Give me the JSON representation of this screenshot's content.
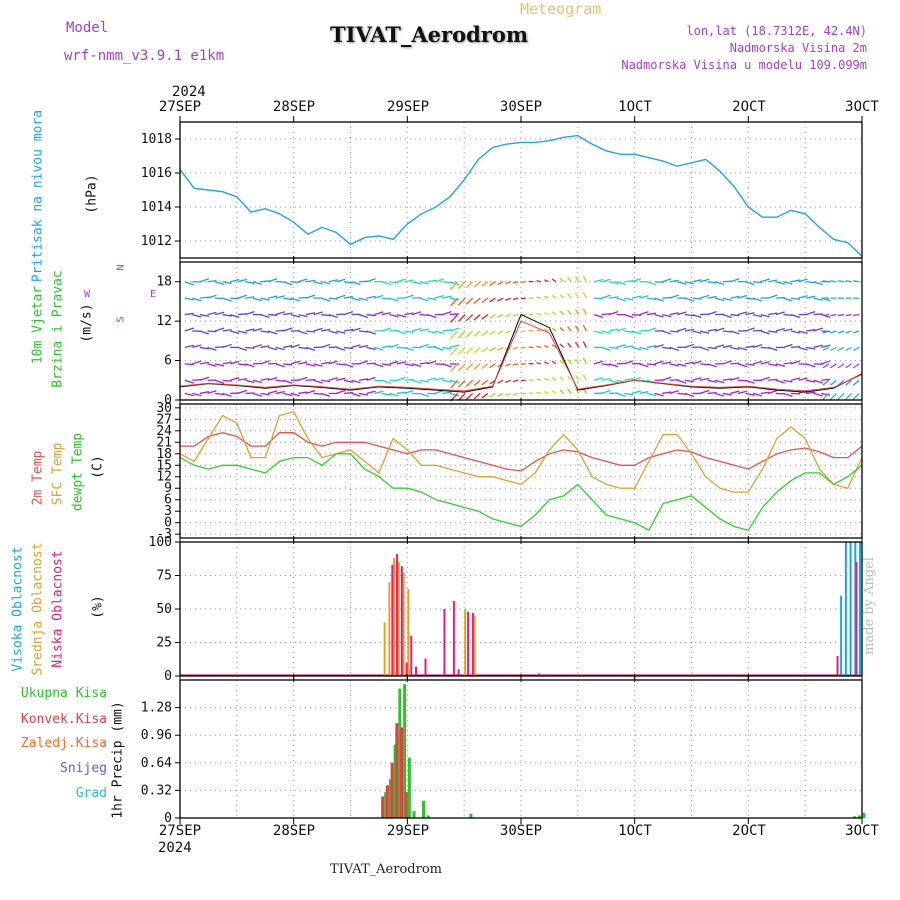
{
  "header": {
    "title": "TIVAT_Aerodrom",
    "meteogram": "Meteogram",
    "model_label": "Model",
    "model_value": "wrf-nmm_v3.9.1 e1km",
    "lonlat": "lon,lat (18.7312E, 42.4N)",
    "elevation": "Nadmorska Visina 2m",
    "model_elevation": "Nadmorska Visina u modelu 109.099m",
    "year": "2024",
    "footer": "TIVAT_Aerodrom",
    "credit": "made by Angel"
  },
  "dates": [
    "27SEP",
    "28SEP",
    "29SEP",
    "30SEP",
    "1OCT",
    "2OCT",
    "3OCT"
  ],
  "colors": {
    "pressure": "#1ea6e6",
    "temp2m": "#e85050",
    "sfc": "#e0a030",
    "dewpt": "#30d030",
    "high": "#20a0e0",
    "mid": "#e0a030",
    "low": "#e0207a",
    "total": "#30c030",
    "conv": "#e04040",
    "gridscale": "#f07020",
    "snow": "#6060e0",
    "hail": "#30c0c0"
  },
  "panel_labels": {
    "pressure": [
      "Pritisak na nivou mora",
      "(hPa)"
    ],
    "wind": [
      "10m Vjetar",
      "Brzina i Pravac",
      "(m/s)"
    ],
    "temp": [
      "2m Temp",
      "SFC Temp",
      "dewpt Temp",
      "(C)"
    ],
    "cloud": [
      "Visoka Oblacnost",
      "Srednja Oblacnost",
      "Niska Oblacnost",
      "(%)"
    ],
    "precip": [
      "Ukupna Kisa",
      "Konvek.Kisa",
      "Zaledj.Kisa",
      "Snijeg",
      "Grad",
      "1hr Precip (mm)"
    ]
  },
  "compass": {
    "n": "N",
    "w": "W",
    "e": "E",
    "s": "S"
  },
  "chart_data": [
    {
      "type": "line",
      "title": "Pritisak na nivou mora",
      "ylabel": "(hPa)",
      "ylim": [
        1011,
        1019
      ],
      "yticks": [
        "1012",
        "1014",
        "1016",
        "1018"
      ],
      "x_hours": [
        0,
        3,
        6,
        9,
        12,
        15,
        18,
        21,
        24,
        27,
        30,
        33,
        36,
        39,
        42,
        45,
        48,
        51,
        54,
        57,
        60,
        63,
        66,
        69,
        72,
        75,
        78,
        81,
        84,
        87,
        90,
        93,
        96,
        99,
        102,
        105,
        108,
        111,
        114,
        117,
        120,
        123,
        126,
        129,
        132,
        135,
        138,
        141,
        144
      ],
      "series": [
        {
          "name": "Pritisak na nivou mora",
          "values": [
            1016.2,
            1015.1,
            1015.0,
            1014.9,
            1014.6,
            1013.7,
            1013.9,
            1013.6,
            1013.1,
            1012.4,
            1012.8,
            1012.5,
            1011.8,
            1012.2,
            1012.3,
            1012.1,
            1013.0,
            1013.6,
            1014.0,
            1014.6,
            1015.6,
            1016.8,
            1017.5,
            1017.7,
            1017.8,
            1017.8,
            1017.9,
            1018.1,
            1018.2,
            1017.7,
            1017.3,
            1017.1,
            1017.1,
            1016.9,
            1016.7,
            1016.4,
            1016.6,
            1016.8,
            1016.1,
            1015.2,
            1014.0,
            1013.4,
            1013.4,
            1013.8,
            1013.6,
            1012.8,
            1012.1,
            1011.9,
            1011.1
          ]
        }
      ]
    },
    {
      "type": "line",
      "title": "10m Vjetar Brzina i Pravac",
      "ylabel": "(m/s)",
      "ylim": [
        0,
        21
      ],
      "yticks": [
        "0",
        "6",
        "12",
        "18"
      ],
      "x_hours": [
        0,
        6,
        12,
        18,
        24,
        30,
        36,
        42,
        48,
        54,
        60,
        66,
        72,
        78,
        84,
        90,
        96,
        102,
        108,
        114,
        120,
        126,
        132,
        138,
        144
      ],
      "series": [
        {
          "name": "wind speed",
          "values": [
            2.0,
            2.5,
            2.2,
            1.8,
            2.2,
            1.9,
            1.5,
            2.0,
            1.8,
            1.5,
            1.2,
            2.0,
            13.0,
            11.0,
            1.5,
            2.2,
            3.0,
            2.5,
            2.0,
            1.8,
            2.0,
            1.5,
            1.2,
            1.8,
            4.0
          ]
        }
      ]
    },
    {
      "type": "line",
      "title": "2m Temp / SFC Temp / dewpt Temp",
      "ylabel": "(C)",
      "ylim": [
        -4,
        31
      ],
      "yticks": [
        "-3",
        "0",
        "3",
        "6",
        "9",
        "12",
        "15",
        "18",
        "21",
        "24",
        "27",
        "30"
      ],
      "x_hours": [
        0,
        3,
        6,
        9,
        12,
        15,
        18,
        21,
        24,
        27,
        30,
        33,
        36,
        39,
        42,
        45,
        48,
        51,
        54,
        57,
        60,
        63,
        66,
        69,
        72,
        75,
        78,
        81,
        84,
        87,
        90,
        93,
        96,
        99,
        102,
        105,
        108,
        111,
        114,
        117,
        120,
        123,
        126,
        129,
        132,
        135,
        138,
        141,
        144
      ],
      "series": [
        {
          "name": "2m Temp",
          "values": [
            20,
            20,
            22.5,
            23.5,
            22.5,
            20,
            20,
            23.5,
            23.5,
            21,
            20,
            21,
            21,
            21,
            20,
            19,
            18,
            19,
            19,
            18,
            17,
            16,
            15,
            14,
            13.5,
            16,
            18,
            19,
            18.5,
            17,
            16,
            15,
            15,
            17,
            18,
            19,
            18.5,
            17,
            16,
            15,
            14,
            16,
            18,
            19,
            19.5,
            18.5,
            17,
            17,
            20
          ]
        },
        {
          "name": "SFC Temp",
          "values": [
            18,
            16,
            22,
            28,
            26,
            17,
            17,
            28,
            29,
            22,
            17,
            18,
            19,
            16,
            13,
            22,
            19,
            15,
            15,
            14,
            13,
            12,
            12,
            11,
            10,
            13,
            19,
            23,
            19,
            12,
            10,
            9,
            9,
            16,
            23,
            23,
            18,
            12,
            9,
            8,
            8,
            14,
            22,
            25,
            22,
            14,
            10,
            9,
            17
          ]
        },
        {
          "name": "dewpt Temp",
          "values": [
            17,
            15,
            14,
            15,
            15,
            14,
            13,
            16,
            17,
            17,
            15,
            18,
            18,
            14,
            12,
            9,
            9,
            8,
            6,
            5,
            4,
            3,
            1,
            0,
            -1,
            2,
            6,
            7,
            10,
            6,
            2,
            1,
            0,
            -2,
            5,
            6,
            7,
            4,
            1,
            -1,
            -2,
            4,
            8,
            11,
            13,
            13,
            10,
            12,
            15
          ]
        }
      ]
    },
    {
      "type": "bar",
      "title": "Visoka / Srednja / Niska Oblacnost",
      "ylabel": "(%)",
      "ylim": [
        0,
        100
      ],
      "yticks": [
        "0",
        "25",
        "50",
        "75",
        "100"
      ],
      "series": [
        {
          "name": "Visoka Oblacnost",
          "x_hours": [
            139,
            140,
            141,
            142,
            143
          ],
          "values": [
            60,
            100,
            100,
            100,
            100
          ]
        },
        {
          "name": "Srednja Oblacnost",
          "x_hours": [
            43,
            44,
            45,
            46,
            47,
            48,
            60,
            62
          ],
          "values": [
            40,
            70,
            88,
            85,
            77,
            65,
            50,
            45
          ]
        },
        {
          "name": "Niska Oblacnost",
          "x_hours": [
            45,
            46,
            47,
            48,
            49,
            50,
            52,
            56,
            58,
            59,
            61,
            62,
            76,
            139,
            143
          ],
          "values": [
            83,
            91,
            82,
            10,
            30,
            7,
            13,
            50,
            56,
            5,
            48,
            47,
            2,
            15,
            85
          ]
        }
      ]
    },
    {
      "type": "bar",
      "title": "1hr Precip",
      "ylabel": "1hr Precip (mm)",
      "ylim": [
        0,
        1.6
      ],
      "yticks": [
        "0",
        "0.32",
        "0.64",
        "0.96",
        "1.28"
      ],
      "series": [
        {
          "name": "Ukupna Kisa",
          "x_hours": [
            43,
            44,
            45,
            46,
            47,
            48,
            49,
            51,
            52,
            61,
            142,
            143,
            144
          ],
          "values": [
            0.3,
            0.45,
            0.85,
            1.5,
            1.55,
            0.7,
            0.08,
            0.2,
            0.03,
            0.05,
            0.02,
            0.03,
            0.06
          ]
        },
        {
          "name": "Konvek.Kisa",
          "x_hours": [
            43,
            44,
            45,
            46,
            47,
            48
          ],
          "values": [
            0.25,
            0.38,
            0.64,
            1.1,
            1.05,
            0.3
          ]
        }
      ]
    }
  ]
}
